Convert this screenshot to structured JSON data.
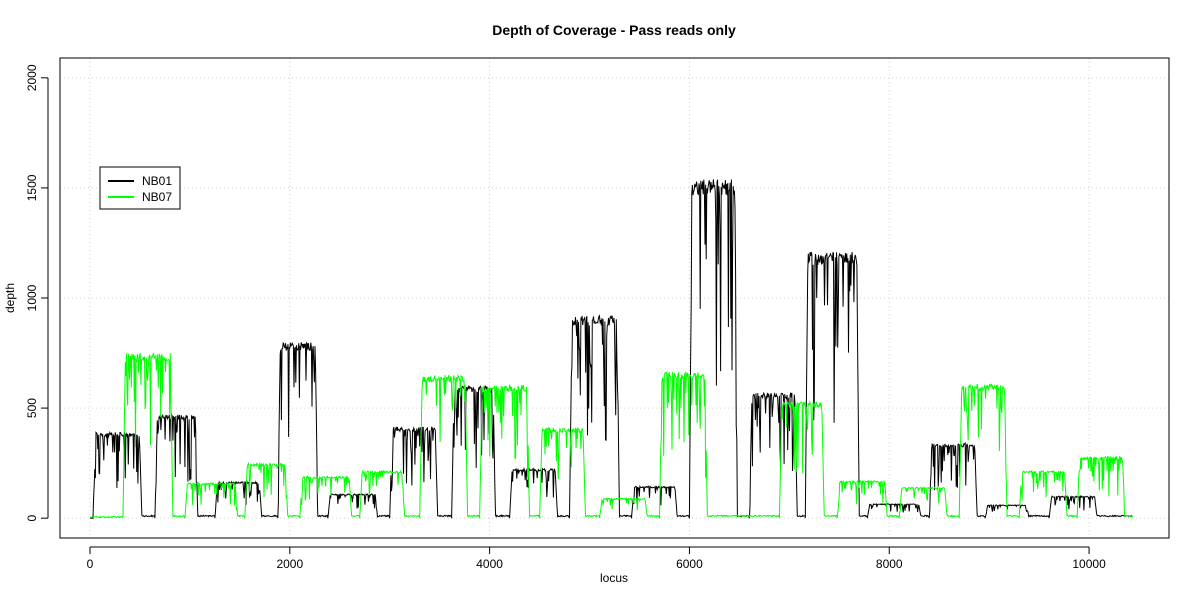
{
  "chart_data": {
    "type": "line",
    "title": "Depth of Coverage - Pass reads only",
    "xlabel": "locus",
    "ylabel": "depth",
    "xlim": [
      -300,
      10800
    ],
    "ylim": [
      -90,
      2090
    ],
    "x_ticks": [
      0,
      2000,
      4000,
      6000,
      8000,
      10000
    ],
    "x_tick_labels": [
      "0",
      "2000",
      "4000",
      "6000",
      "8000",
      "10000"
    ],
    "y_ticks": [
      0,
      500,
      1000,
      1500,
      2000
    ],
    "y_tick_labels": [
      "0",
      "500",
      "1000",
      "1500",
      "2000"
    ],
    "grid": true,
    "legend_position": "top-left",
    "colors": {
      "NB01": "#000000",
      "NB07": "#00ff00",
      "grid": "#d3d3d3"
    },
    "series": [
      {
        "name": "NB01",
        "color": "#000000",
        "segments": [
          {
            "x0": 0,
            "x1": 30,
            "depth": 0
          },
          {
            "x0": 30,
            "x1": 520,
            "depth": 390
          },
          {
            "x0": 520,
            "x1": 650,
            "depth": 10
          },
          {
            "x0": 650,
            "x1": 1080,
            "depth": 470
          },
          {
            "x0": 1080,
            "x1": 1250,
            "depth": 10
          },
          {
            "x0": 1250,
            "x1": 1720,
            "depth": 165
          },
          {
            "x0": 1720,
            "x1": 1880,
            "depth": 10
          },
          {
            "x0": 1880,
            "x1": 2280,
            "depth": 800
          },
          {
            "x0": 2280,
            "x1": 2380,
            "depth": 10
          },
          {
            "x0": 2380,
            "x1": 2880,
            "depth": 110
          },
          {
            "x0": 2880,
            "x1": 3000,
            "depth": 10
          },
          {
            "x0": 3000,
            "x1": 3480,
            "depth": 415
          },
          {
            "x0": 3480,
            "x1": 3620,
            "depth": 10
          },
          {
            "x0": 3620,
            "x1": 4060,
            "depth": 600
          },
          {
            "x0": 4060,
            "x1": 4200,
            "depth": 10
          },
          {
            "x0": 4200,
            "x1": 4680,
            "depth": 225
          },
          {
            "x0": 4680,
            "x1": 4800,
            "depth": 10
          },
          {
            "x0": 4800,
            "x1": 5300,
            "depth": 920
          },
          {
            "x0": 5300,
            "x1": 5420,
            "depth": 10
          },
          {
            "x0": 5420,
            "x1": 5880,
            "depth": 145
          },
          {
            "x0": 5880,
            "x1": 6000,
            "depth": 10
          },
          {
            "x0": 6000,
            "x1": 6480,
            "depth": 1540
          },
          {
            "x0": 6480,
            "x1": 6600,
            "depth": 10
          },
          {
            "x0": 6600,
            "x1": 7080,
            "depth": 570
          },
          {
            "x0": 7080,
            "x1": 7160,
            "depth": 10
          },
          {
            "x0": 7160,
            "x1": 7700,
            "depth": 1210
          },
          {
            "x0": 7700,
            "x1": 7780,
            "depth": 10
          },
          {
            "x0": 7780,
            "x1": 8320,
            "depth": 65
          },
          {
            "x0": 8320,
            "x1": 8400,
            "depth": 10
          },
          {
            "x0": 8400,
            "x1": 8880,
            "depth": 340
          },
          {
            "x0": 8880,
            "x1": 8960,
            "depth": 10
          },
          {
            "x0": 8960,
            "x1": 9400,
            "depth": 60
          },
          {
            "x0": 9400,
            "x1": 9600,
            "depth": 10
          },
          {
            "x0": 9600,
            "x1": 10080,
            "depth": 100
          },
          {
            "x0": 10080,
            "x1": 10440,
            "depth": 10
          }
        ]
      },
      {
        "name": "NB07",
        "color": "#00ff00",
        "segments": [
          {
            "x0": 0,
            "x1": 330,
            "depth": 5
          },
          {
            "x0": 330,
            "x1": 830,
            "depth": 750
          },
          {
            "x0": 830,
            "x1": 950,
            "depth": 10
          },
          {
            "x0": 950,
            "x1": 1480,
            "depth": 160
          },
          {
            "x0": 1480,
            "x1": 1550,
            "depth": 10
          },
          {
            "x0": 1550,
            "x1": 1980,
            "depth": 250
          },
          {
            "x0": 1980,
            "x1": 2100,
            "depth": 10
          },
          {
            "x0": 2100,
            "x1": 2620,
            "depth": 190
          },
          {
            "x0": 2620,
            "x1": 2700,
            "depth": 10
          },
          {
            "x0": 2700,
            "x1": 3150,
            "depth": 215
          },
          {
            "x0": 3150,
            "x1": 3300,
            "depth": 10
          },
          {
            "x0": 3300,
            "x1": 3780,
            "depth": 650
          },
          {
            "x0": 3780,
            "x1": 3900,
            "depth": 10
          },
          {
            "x0": 3900,
            "x1": 4400,
            "depth": 605
          },
          {
            "x0": 4400,
            "x1": 4500,
            "depth": 10
          },
          {
            "x0": 4500,
            "x1": 4960,
            "depth": 410
          },
          {
            "x0": 4960,
            "x1": 5100,
            "depth": 10
          },
          {
            "x0": 5100,
            "x1": 5580,
            "depth": 90
          },
          {
            "x0": 5580,
            "x1": 5700,
            "depth": 10
          },
          {
            "x0": 5700,
            "x1": 6180,
            "depth": 665
          },
          {
            "x0": 6180,
            "x1": 6900,
            "depth": 10
          },
          {
            "x0": 6900,
            "x1": 7350,
            "depth": 530
          },
          {
            "x0": 7350,
            "x1": 7480,
            "depth": 10
          },
          {
            "x0": 7480,
            "x1": 7980,
            "depth": 170
          },
          {
            "x0": 7980,
            "x1": 8100,
            "depth": 10
          },
          {
            "x0": 8100,
            "x1": 8580,
            "depth": 140
          },
          {
            "x0": 8580,
            "x1": 8700,
            "depth": 10
          },
          {
            "x0": 8700,
            "x1": 9180,
            "depth": 610
          },
          {
            "x0": 9180,
            "x1": 9300,
            "depth": 10
          },
          {
            "x0": 9300,
            "x1": 9780,
            "depth": 215
          },
          {
            "x0": 9780,
            "x1": 9880,
            "depth": 10
          },
          {
            "x0": 9880,
            "x1": 10360,
            "depth": 280
          },
          {
            "x0": 10360,
            "x1": 10440,
            "depth": 10
          }
        ]
      }
    ]
  }
}
